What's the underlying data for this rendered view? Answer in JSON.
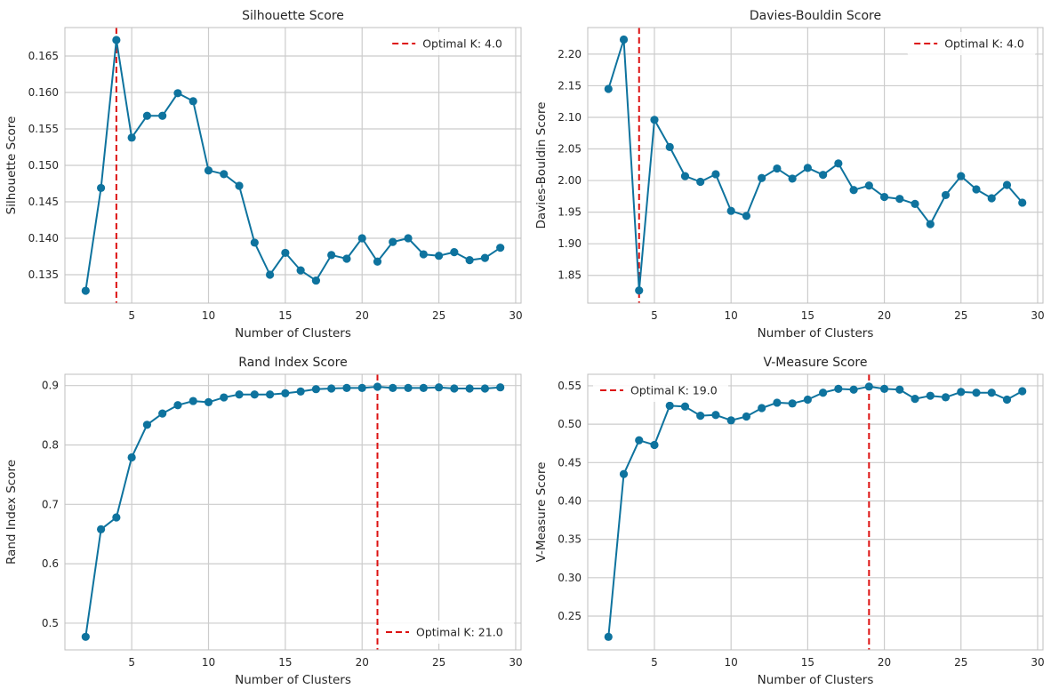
{
  "colors": {
    "line": "#0e739e",
    "marker": "#0e739e",
    "optimal": "#dd1111",
    "grid": "#cccccc",
    "axes": "#bfbfbf",
    "text": "#262626"
  },
  "chart_data": [
    {
      "type": "line",
      "title": "Silhouette Score",
      "xlabel": "Number of Clusters",
      "ylabel": "Silhouette Score",
      "xlim": [
        0.65,
        30.35
      ],
      "ylim": [
        0.1311,
        0.1689
      ],
      "xticks": [
        5,
        10,
        15,
        20,
        25,
        30
      ],
      "yticks": [
        0.135,
        0.14,
        0.145,
        0.15,
        0.155,
        0.16,
        0.165
      ],
      "ytick_labels": [
        "0.135",
        "0.140",
        "0.145",
        "0.150",
        "0.155",
        "0.160",
        "0.165"
      ],
      "grid": true,
      "legend_position": "upper-right",
      "optimal_k": 4,
      "optimal_label": "Optimal K: 4.0",
      "x": [
        2,
        3,
        4,
        5,
        6,
        7,
        8,
        9,
        10,
        11,
        12,
        13,
        14,
        15,
        16,
        17,
        18,
        19,
        20,
        21,
        22,
        23,
        24,
        25,
        26,
        27,
        28,
        29
      ],
      "values": [
        0.1328,
        0.1469,
        0.1672,
        0.1538,
        0.1568,
        0.1568,
        0.1599,
        0.1588,
        0.1493,
        0.1488,
        0.1472,
        0.1394,
        0.135,
        0.138,
        0.1356,
        0.1342,
        0.1377,
        0.1372,
        0.14,
        0.1368,
        0.1395,
        0.14,
        0.1378,
        0.1376,
        0.1381,
        0.137,
        0.1373,
        0.1387
      ]
    },
    {
      "type": "line",
      "title": "Davies-Bouldin Score",
      "xlabel": "Number of Clusters",
      "ylabel": "Davies-Bouldin Score",
      "xlim": [
        0.65,
        30.35
      ],
      "ylim": [
        1.806,
        2.242
      ],
      "xticks": [
        5,
        10,
        15,
        20,
        25,
        30
      ],
      "yticks": [
        1.85,
        1.9,
        1.95,
        2.0,
        2.05,
        2.1,
        2.15,
        2.2
      ],
      "ytick_labels": [
        "1.85",
        "1.90",
        "1.95",
        "2.00",
        "2.05",
        "2.10",
        "2.15",
        "2.20"
      ],
      "grid": true,
      "legend_position": "upper-right",
      "optimal_k": 4,
      "optimal_label": "Optimal K: 4.0",
      "x": [
        2,
        3,
        4,
        5,
        6,
        7,
        8,
        9,
        10,
        11,
        12,
        13,
        14,
        15,
        16,
        17,
        18,
        19,
        20,
        21,
        22,
        23,
        24,
        25,
        26,
        27,
        28,
        29
      ],
      "values": [
        2.145,
        2.223,
        1.826,
        2.096,
        2.053,
        2.007,
        1.998,
        2.01,
        1.952,
        1.944,
        2.004,
        2.019,
        2.003,
        2.02,
        2.009,
        2.027,
        1.985,
        1.992,
        1.974,
        1.971,
        1.963,
        1.931,
        1.977,
        2.007,
        1.986,
        1.972,
        1.993,
        1.965
      ]
    },
    {
      "type": "line",
      "title": "Rand Index Score",
      "xlabel": "Number of Clusters",
      "ylabel": "Rand Index Score",
      "xlim": [
        0.65,
        30.35
      ],
      "ylim": [
        0.455,
        0.919
      ],
      "xticks": [
        5,
        10,
        15,
        20,
        25,
        30
      ],
      "yticks": [
        0.5,
        0.6,
        0.7,
        0.8,
        0.9
      ],
      "ytick_labels": [
        "0.5",
        "0.6",
        "0.7",
        "0.8",
        "0.9"
      ],
      "grid": true,
      "legend_position": "lower-right",
      "optimal_k": 21,
      "optimal_label": "Optimal K: 21.0",
      "x": [
        2,
        3,
        4,
        5,
        6,
        7,
        8,
        9,
        10,
        11,
        12,
        13,
        14,
        15,
        16,
        17,
        18,
        19,
        20,
        21,
        22,
        23,
        24,
        25,
        26,
        27,
        28,
        29
      ],
      "values": [
        0.477,
        0.658,
        0.678,
        0.779,
        0.834,
        0.853,
        0.867,
        0.874,
        0.872,
        0.88,
        0.885,
        0.885,
        0.885,
        0.887,
        0.89,
        0.894,
        0.895,
        0.896,
        0.896,
        0.898,
        0.896,
        0.896,
        0.896,
        0.897,
        0.895,
        0.895,
        0.895,
        0.897
      ]
    },
    {
      "type": "line",
      "title": "V-Measure Score",
      "xlabel": "Number of Clusters",
      "ylabel": "V-Measure Score",
      "xlim": [
        0.65,
        30.35
      ],
      "ylim": [
        0.206,
        0.565
      ],
      "xticks": [
        5,
        10,
        15,
        20,
        25,
        30
      ],
      "yticks": [
        0.25,
        0.3,
        0.35,
        0.4,
        0.45,
        0.5,
        0.55
      ],
      "ytick_labels": [
        "0.25",
        "0.30",
        "0.35",
        "0.40",
        "0.45",
        "0.50",
        "0.55"
      ],
      "grid": true,
      "legend_position": "upper-left",
      "optimal_k": 19,
      "optimal_label": "Optimal K: 19.0",
      "x": [
        2,
        3,
        4,
        5,
        6,
        7,
        8,
        9,
        10,
        11,
        12,
        13,
        14,
        15,
        16,
        17,
        18,
        19,
        20,
        21,
        22,
        23,
        24,
        25,
        26,
        27,
        28,
        29
      ],
      "values": [
        0.223,
        0.435,
        0.479,
        0.473,
        0.524,
        0.523,
        0.511,
        0.512,
        0.505,
        0.51,
        0.521,
        0.528,
        0.527,
        0.532,
        0.541,
        0.546,
        0.545,
        0.549,
        0.546,
        0.545,
        0.533,
        0.537,
        0.535,
        0.542,
        0.541,
        0.541,
        0.532,
        0.543
      ]
    }
  ]
}
